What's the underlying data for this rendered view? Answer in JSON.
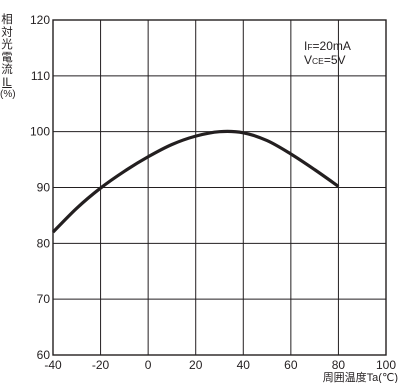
{
  "chart_data": {
    "type": "line",
    "title": "",
    "ylabel": "相対光電流IL(%)",
    "ylabel_parts": [
      "相",
      "対",
      "光",
      "電",
      "流",
      "IL",
      "(%)"
    ],
    "xlabel": "周囲温度Ta(℃)",
    "xlim": [
      -40,
      100
    ],
    "ylim": [
      60,
      120
    ],
    "xticks": [
      -40,
      -20,
      0,
      20,
      40,
      60,
      80,
      100
    ],
    "yticks": [
      60,
      70,
      80,
      90,
      100,
      110,
      120
    ],
    "grid": true,
    "legend": "none",
    "annotations": {
      "line1_main": "I",
      "line1_sub": "F",
      "line1_rest": "=20mA",
      "line2_main": "V",
      "line2_sub": "CE",
      "line2_rest": "=5V"
    },
    "series": [
      {
        "x": [
          -40,
          -30,
          -20,
          -10,
          0,
          10,
          20,
          30,
          40,
          50,
          60,
          70,
          80
        ],
        "y": [
          82.0,
          86.3,
          89.9,
          92.9,
          95.5,
          97.7,
          99.2,
          100.0,
          99.8,
          98.4,
          96.0,
          93.2,
          90.2
        ]
      }
    ],
    "colors": {
      "line": "#231f20",
      "grid": "#231f20",
      "background": "#ffffff"
    }
  }
}
